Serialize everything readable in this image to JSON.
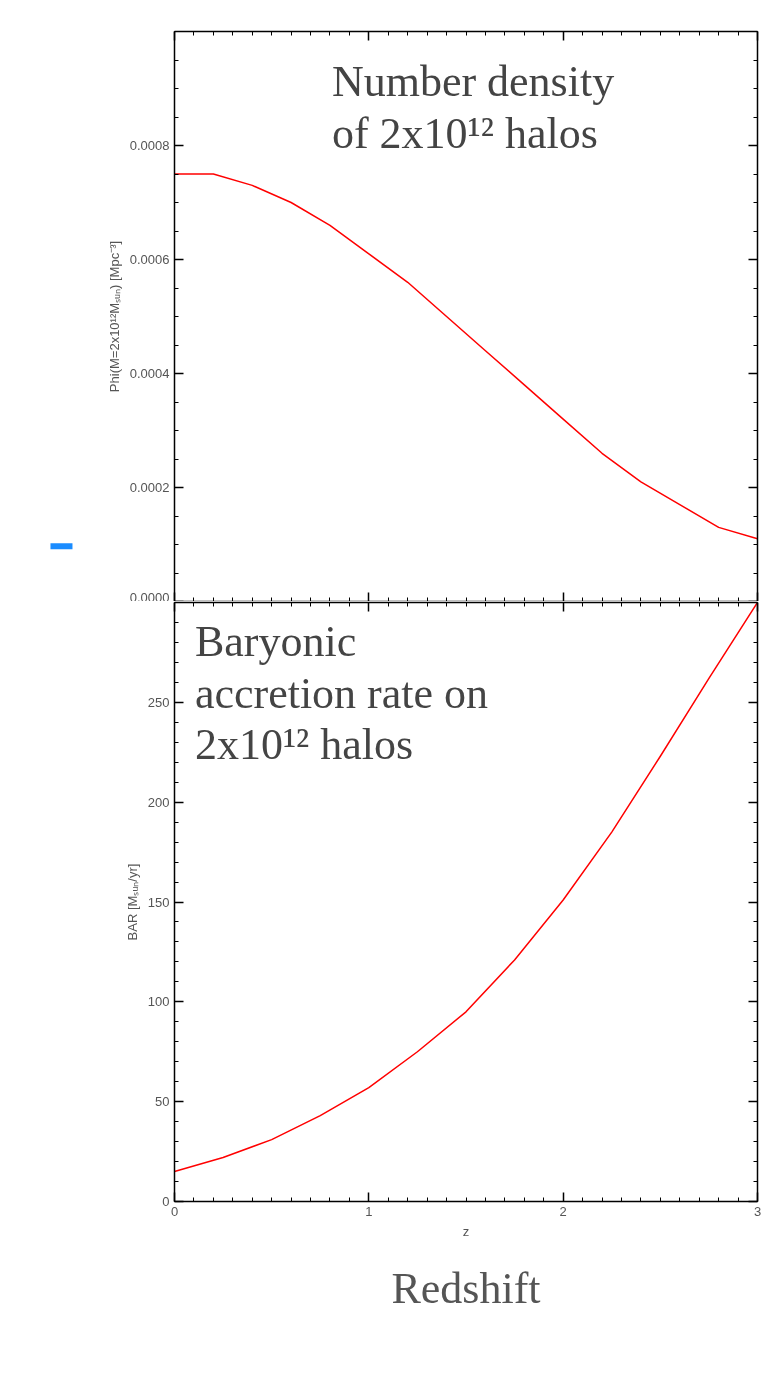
{
  "chart_data": [
    {
      "type": "line",
      "ylabel": "Phi(M=2x10¹²Mₛᵤₙ) [Mpc⁻³]",
      "annotations": [
        "Number density\nof 2x10¹² halos"
      ],
      "x": [
        0,
        0.2,
        0.4,
        0.6,
        0.8,
        1.0,
        1.2,
        1.4,
        1.6,
        1.8,
        2.0,
        2.2,
        2.4,
        2.6,
        2.8,
        3.0
      ],
      "series": [
        {
          "color": "#ff0000",
          "values": [
            0.00075,
            0.00075,
            0.00073,
            0.0007,
            0.00066,
            0.00061,
            0.00056,
            0.0005,
            0.00044,
            0.00038,
            0.00032,
            0.00026,
            0.00021,
            0.00017,
            0.00013,
            0.00011
          ]
        }
      ],
      "xlim": [
        0,
        3
      ],
      "xticks": [
        0,
        1,
        2,
        3
      ],
      "ylim": [
        0,
        0.001
      ],
      "yticks": [
        {
          "value": 0,
          "label": "0.0000"
        },
        {
          "value": 0.0002,
          "label": "0.0002"
        },
        {
          "value": 0.0004,
          "label": "0.0004"
        },
        {
          "value": 0.0006,
          "label": "0.0006"
        },
        {
          "value": 0.0008,
          "label": "0.0008"
        }
      ],
      "tick_labels": "y",
      "marker": "none",
      "line_style": "solid"
    },
    {
      "type": "line",
      "xlabel": "z",
      "ylabel": "BAR [Mₛᵤₙ/yr]",
      "annotations": [
        "Baryonic\naccretion rate on\n2x10¹² halos",
        "Redshift"
      ],
      "x": [
        0,
        0.25,
        0.5,
        0.75,
        1.0,
        1.25,
        1.5,
        1.75,
        2.0,
        2.25,
        2.5,
        2.75,
        3.0
      ],
      "series": [
        {
          "color": "#ff0000",
          "values": [
            15,
            22,
            31,
            43,
            57,
            75,
            95,
            121,
            151,
            185,
            223,
            262,
            300
          ]
        }
      ],
      "xlim": [
        0,
        3
      ],
      "xticks": [
        0,
        1,
        2,
        3
      ],
      "ylim": [
        0,
        300
      ],
      "yticks": [
        0,
        50,
        100,
        150,
        200,
        250
      ],
      "marker": "none",
      "line_style": "solid"
    }
  ]
}
